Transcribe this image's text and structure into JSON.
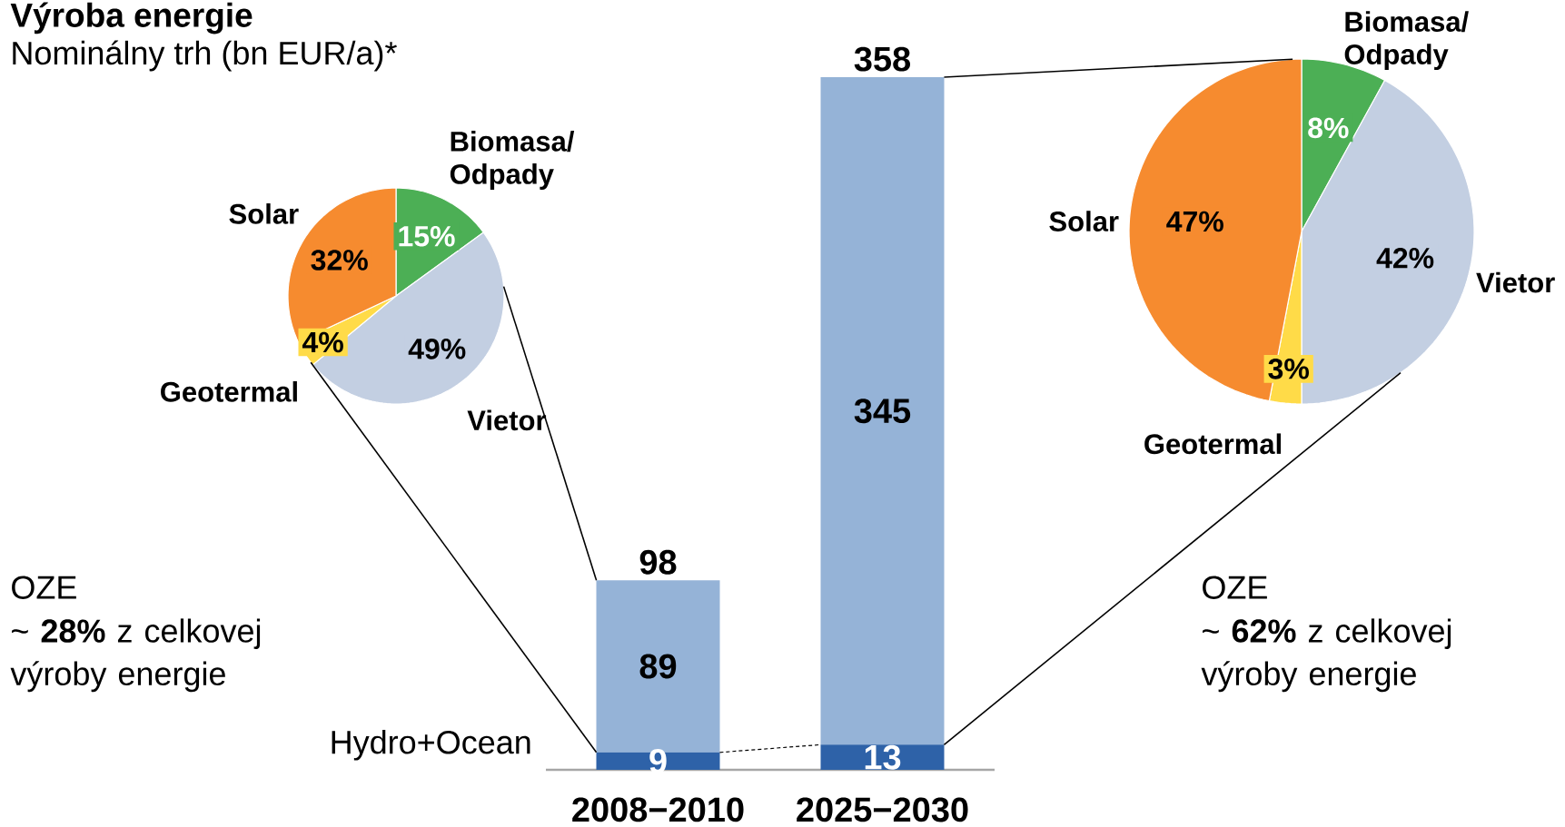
{
  "chart_data": [
    {
      "type": "bar",
      "subtitle": "Nominálny trh (bn EUR/a)*",
      "categories": [
        "2008−2010",
        "2025−2030"
      ],
      "stacked": true,
      "data_labels": true,
      "totals": [
        "98",
        "358"
      ],
      "series": [
        {
          "name": "Hydro+Ocean",
          "color": "#2e62a8",
          "values": [
            9,
            13
          ]
        },
        {
          "color": "#95b3d7",
          "values": [
            89,
            345
          ]
        }
      ],
      "annotations": [
        "OZE",
        "~ **28%** z celkovej výroby energie",
        "OZE",
        "~ **62%** z celkovej výroby energie"
      ]
    },
    {
      "type": "pie",
      "title": "Výroba energie",
      "categories": [
        "Biomasa/ Odpady",
        "Vietor",
        "Geotermal",
        "Solar"
      ],
      "values": [
        15,
        49,
        4,
        32
      ],
      "value_labels": [
        "15%",
        "49%",
        "4%",
        "32%"
      ],
      "colors": [
        "#4caf55",
        "#c3cfe2",
        "#ffdb48",
        "#f68b2f"
      ]
    },
    {
      "type": "pie",
      "categories": [
        "Biomasa/ Odpady",
        "Vietor",
        "Geotermal",
        "Solar"
      ],
      "values": [
        8,
        42,
        3,
        47
      ],
      "value_labels": [
        "8%",
        "42%",
        "3%",
        "47%"
      ],
      "colors": [
        "#4caf55",
        "#c3cfe2",
        "#ffdb48",
        "#f68b2f"
      ]
    }
  ]
}
